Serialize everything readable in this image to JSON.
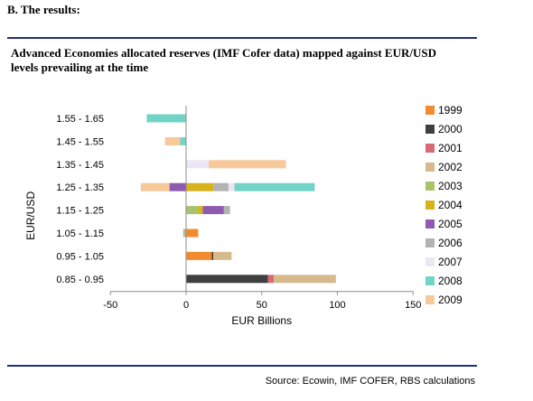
{
  "section_heading": "B.  The results:",
  "source": "Source:  Ecowin, IMF COFER, RBS calculations",
  "colors": {
    "1999": "#f28a2e",
    "2000": "#3f3f3f",
    "2001": "#d86a78",
    "2002": "#d6ba8e",
    "2003": "#a8c46a",
    "2004": "#d6b21c",
    "2005": "#8f5bb0",
    "2006": "#b3b3b3",
    "2007": "#ece6f4",
    "2008": "#72d4c6",
    "2009": "#f7c89a",
    "rule": "#1f2f7f"
  },
  "chart_data": {
    "type": "bar",
    "orientation": "horizontal",
    "stacked": true,
    "title": "Advanced Economies allocated reserves (IMF Cofer data) mapped against EUR/USD levels prevailing at the time",
    "xlabel": "EUR Billions",
    "ylabel": "EUR/USD",
    "xlim": [
      -50,
      150
    ],
    "xticks": [
      -50,
      0,
      50,
      100,
      150
    ],
    "grid": false,
    "legend_position": "right",
    "categories": [
      "1.55 - 1.65",
      "1.45 - 1.55",
      "1.35 - 1.45",
      "1.25 - 1.35",
      "1.15 - 1.25",
      "1.05 - 1.15",
      "0.95 - 1.05",
      "0.85 - 0.95"
    ],
    "series": [
      {
        "name": "1999",
        "values": [
          0,
          0,
          0,
          0,
          0,
          8,
          17,
          0
        ]
      },
      {
        "name": "2000",
        "values": [
          0,
          0,
          0,
          0,
          0,
          0,
          1,
          54
        ]
      },
      {
        "name": "2001",
        "values": [
          0,
          0,
          0,
          0,
          0,
          0,
          0,
          4
        ]
      },
      {
        "name": "2002",
        "values": [
          0,
          0,
          0,
          0,
          0,
          0,
          12,
          41
        ]
      },
      {
        "name": "2003",
        "values": [
          0,
          0,
          0,
          0,
          8,
          -1,
          0,
          0
        ]
      },
      {
        "name": "2004",
        "values": [
          0,
          0,
          0,
          18,
          3,
          0,
          0,
          0
        ]
      },
      {
        "name": "2005",
        "values": [
          0,
          0,
          0,
          -11,
          14,
          0,
          0,
          0
        ]
      },
      {
        "name": "2006",
        "values": [
          0,
          0,
          0,
          10,
          4,
          -1,
          0,
          0
        ]
      },
      {
        "name": "2007",
        "values": [
          0,
          0,
          15,
          4,
          0,
          0,
          0,
          0
        ]
      },
      {
        "name": "2008",
        "values": [
          -26,
          -4,
          0,
          53,
          0,
          0,
          0,
          0
        ]
      },
      {
        "name": "2009",
        "values": [
          0,
          -10,
          51,
          -19,
          0,
          0,
          0,
          0
        ]
      }
    ]
  }
}
